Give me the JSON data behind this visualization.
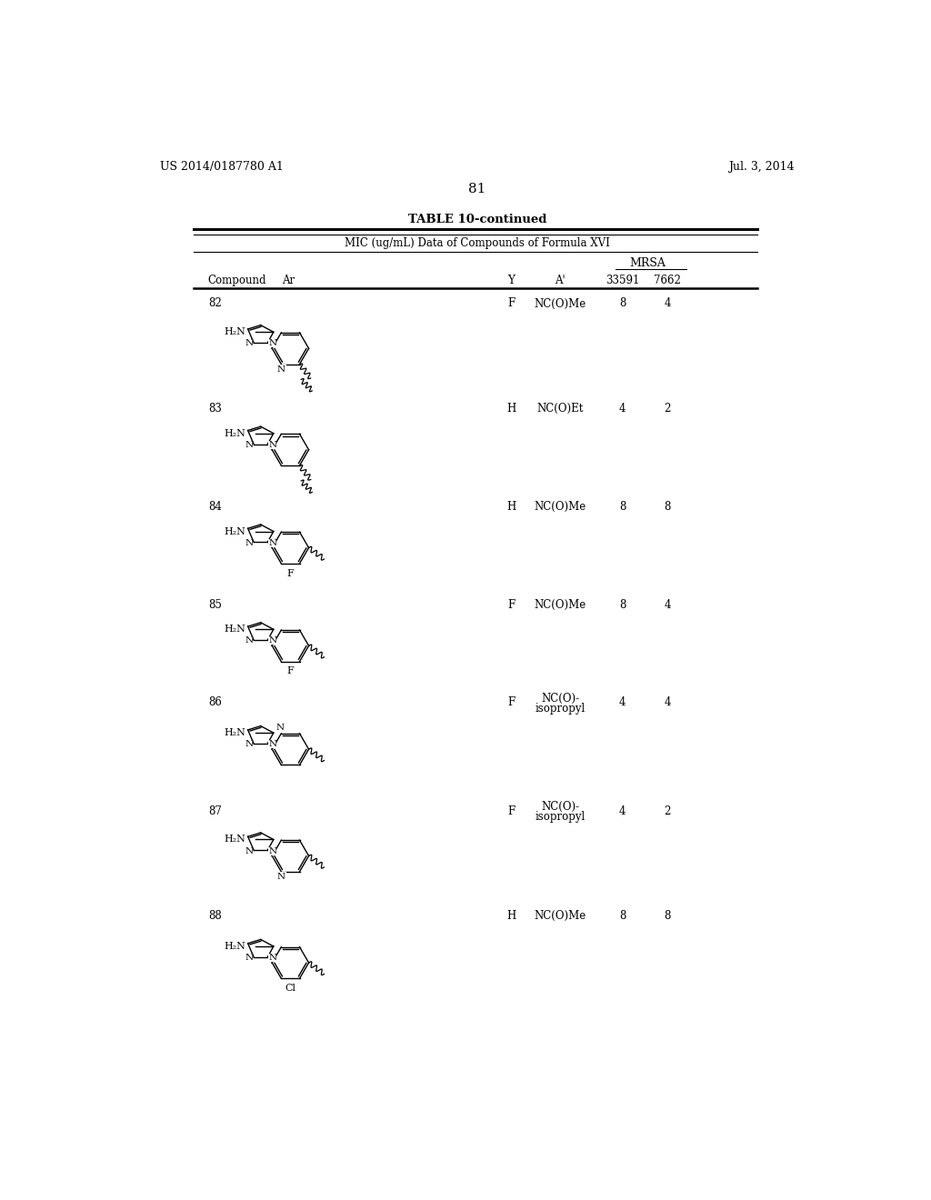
{
  "page_header_left": "US 2014/0187780 A1",
  "page_header_right": "Jul. 3, 2014",
  "page_number": "81",
  "table_title": "TABLE 10-continued",
  "table_subtitle": "MIC (ug/mL) Data of Compounds of Formula XVI",
  "mrsa_label": "MRSA",
  "col_compound": "Compound",
  "col_ar": "Ar",
  "col_y": "Y",
  "col_aprime": "A'",
  "col_33591": "33591",
  "col_7662": "7662",
  "rows": [
    {
      "id": "82",
      "Y": "F",
      "Ap": "NC(O)Me",
      "v1": "8",
      "v2": "4",
      "ring6": "pyridine_N_bottom",
      "sub": "",
      "wavy_pos": "bottom_right"
    },
    {
      "id": "83",
      "Y": "H",
      "Ap": "NC(O)Et",
      "v1": "4",
      "v2": "2",
      "ring6": "benzene",
      "sub": "",
      "wavy_pos": "bottom_right"
    },
    {
      "id": "84",
      "Y": "H",
      "Ap": "NC(O)Me",
      "v1": "8",
      "v2": "8",
      "ring6": "benzene",
      "sub": "F",
      "wavy_pos": "right"
    },
    {
      "id": "85",
      "Y": "F",
      "Ap": "NC(O)Me",
      "v1": "8",
      "v2": "4",
      "ring6": "benzene",
      "sub": "F",
      "wavy_pos": "right"
    },
    {
      "id": "86",
      "Y": "F",
      "Ap": "NC(O)-\nisopropyl",
      "v1": "4",
      "v2": "4",
      "ring6": "pyridine_N_left",
      "sub": "",
      "wavy_pos": "right"
    },
    {
      "id": "87",
      "Y": "F",
      "Ap": "NC(O)-\nisopropyl",
      "v1": "4",
      "v2": "2",
      "ring6": "pyridine_N_bottom",
      "sub": "",
      "wavy_pos": "right"
    },
    {
      "id": "88",
      "Y": "H",
      "Ap": "NC(O)Me",
      "v1": "8",
      "v2": "8",
      "ring6": "benzene",
      "sub": "Cl",
      "wavy_pos": "right"
    }
  ]
}
